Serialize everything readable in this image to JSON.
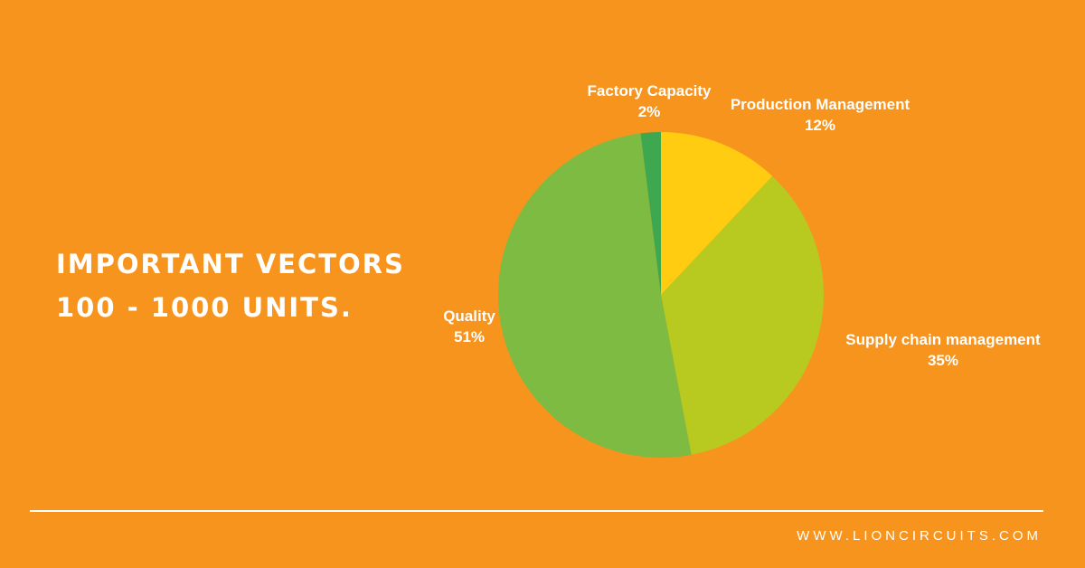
{
  "headline": {
    "line1": "IMPORTANT VECTORS",
    "line2": "100 - 1000 UNITS."
  },
  "colors": {
    "background": "#F7941D",
    "text": "#FFFFFF"
  },
  "chart_data": {
    "type": "pie",
    "start_angle_deg": 0,
    "direction": "clockwise",
    "slices": [
      {
        "label": "Production Management",
        "value": 12,
        "value_label": "12%",
        "color": "#FFCC11"
      },
      {
        "label": "Supply chain management",
        "value": 35,
        "value_label": "35%",
        "color": "#B8C920"
      },
      {
        "label": "Quality",
        "value": 51,
        "value_label": "51%",
        "color": "#7DBB42"
      },
      {
        "label": "Factory Capacity",
        "value": 2,
        "value_label": "2%",
        "color": "#3DA84F"
      }
    ]
  },
  "footer": {
    "url": "WWW.LIONCIRCUITS.COM"
  }
}
